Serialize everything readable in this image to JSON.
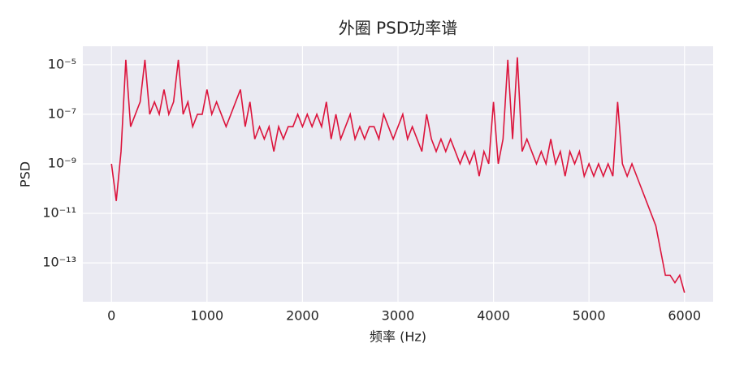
{
  "chart_data": {
    "type": "line",
    "title": "外圈 PSD功率谱",
    "xlabel": "频率 (Hz)",
    "ylabel": "PSD",
    "x": [
      0,
      50,
      100,
      150,
      200,
      250,
      300,
      350,
      400,
      450,
      500,
      550,
      600,
      650,
      700,
      750,
      800,
      850,
      900,
      950,
      1000,
      1050,
      1100,
      1150,
      1200,
      1250,
      1300,
      1350,
      1400,
      1450,
      1500,
      1550,
      1600,
      1650,
      1700,
      1750,
      1800,
      1850,
      1900,
      1950,
      2000,
      2050,
      2100,
      2150,
      2200,
      2250,
      2300,
      2350,
      2400,
      2450,
      2500,
      2550,
      2600,
      2650,
      2700,
      2750,
      2800,
      2850,
      2900,
      2950,
      3000,
      3050,
      3100,
      3150,
      3200,
      3250,
      3300,
      3350,
      3400,
      3450,
      3500,
      3550,
      3600,
      3650,
      3700,
      3750,
      3800,
      3850,
      3900,
      3950,
      4000,
      4050,
      4100,
      4150,
      4200,
      4250,
      4300,
      4350,
      4400,
      4450,
      4500,
      4550,
      4600,
      4650,
      4700,
      4750,
      4800,
      4850,
      4900,
      4950,
      5000,
      5050,
      5100,
      5150,
      5200,
      5250,
      5300,
      5350,
      5400,
      5450,
      5500,
      5550,
      5600,
      5650,
      5700,
      5750,
      5800,
      5850,
      5900,
      5950,
      6000
    ],
    "series": [
      {
        "name": "PSD",
        "color": "#dc143c",
        "values": [
          1e-09,
          3.16e-11,
          3.16e-09,
          1.58e-05,
          3.16e-08,
          1e-07,
          3.16e-07,
          1.58e-05,
          1e-07,
          3.16e-07,
          1e-07,
          1e-06,
          1e-07,
          3.16e-07,
          1.58e-05,
          1e-07,
          3.16e-07,
          3.16e-08,
          1e-07,
          1e-07,
          1e-06,
          1e-07,
          3.16e-07,
          1e-07,
          3.16e-08,
          1e-07,
          3.16e-07,
          1e-06,
          3.16e-08,
          3.16e-07,
          1e-08,
          3.16e-08,
          1e-08,
          3.16e-08,
          3.16e-09,
          3.16e-08,
          1e-08,
          3.16e-08,
          3.16e-08,
          1e-07,
          3.16e-08,
          1e-07,
          3.16e-08,
          1e-07,
          3.16e-08,
          3.16e-07,
          1e-08,
          1e-07,
          1e-08,
          3.16e-08,
          1e-07,
          1e-08,
          3.16e-08,
          1e-08,
          3.16e-08,
          3.16e-08,
          1e-08,
          1e-07,
          3.16e-08,
          1e-08,
          3.16e-08,
          1e-07,
          1e-08,
          3.16e-08,
          1e-08,
          3.16e-09,
          1e-07,
          1e-08,
          3.16e-09,
          1e-08,
          3.16e-09,
          1e-08,
          3.16e-09,
          1e-09,
          3.16e-09,
          1e-09,
          3.16e-09,
          3.16e-10,
          3.16e-09,
          1e-09,
          3.16e-07,
          1e-09,
          1e-08,
          1.58e-05,
          1e-08,
          2e-05,
          3.16e-09,
          1e-08,
          3.16e-09,
          1e-09,
          3.16e-09,
          1e-09,
          1e-08,
          1e-09,
          3.16e-09,
          3.16e-10,
          3.16e-09,
          1e-09,
          3.16e-09,
          3.16e-10,
          1e-09,
          3.16e-10,
          1e-09,
          3.16e-10,
          1e-09,
          3.16e-10,
          3.16e-07,
          1e-09,
          3.16e-10,
          1e-09,
          3.16e-10,
          1e-10,
          3.16e-11,
          1e-11,
          3.16e-12,
          3.16e-13,
          3.16e-14,
          3.16e-14,
          1.58e-14,
          3.16e-14,
          6.3e-15
        ]
      }
    ],
    "xlim": [
      -300,
      6300
    ],
    "xticks": [
      0,
      1000,
      2000,
      3000,
      4000,
      5000,
      6000
    ],
    "ylim": [
      2.7e-15,
      5.6e-05
    ],
    "ylog": true,
    "yticks": [
      {
        "value": 1e-05,
        "label": "10⁻⁵"
      },
      {
        "value": 1e-07,
        "label": "10⁻⁷"
      },
      {
        "value": 1e-09,
        "label": "10⁻⁹"
      },
      {
        "value": 1e-11,
        "label": "10⁻¹¹"
      },
      {
        "value": 1e-13,
        "label": "10⁻¹³"
      }
    ],
    "grid": true
  }
}
